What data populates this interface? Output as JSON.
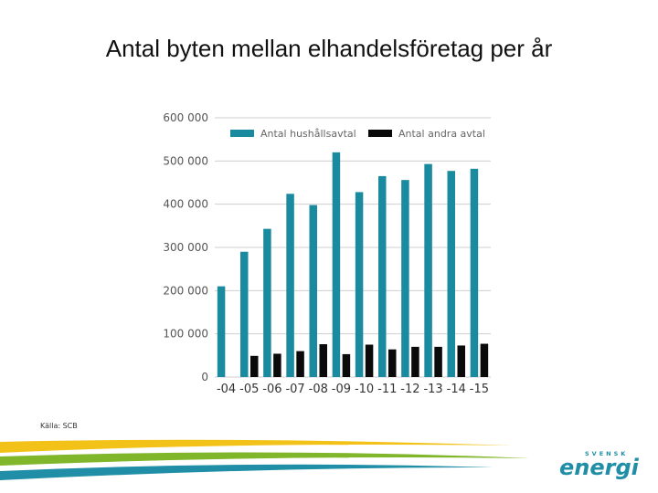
{
  "slide": {
    "title": "Antal byten mellan elhandelsföretag per år",
    "source": "Källa: SCB"
  },
  "brand": {
    "small": "SVENSK",
    "big": "energi"
  },
  "colors": {
    "household": "#1a8a9e",
    "other": "#0a0a0a",
    "grid": "#cfcfcf",
    "swoosh_yellow": "#f2c218",
    "swoosh_green": "#7fb62a",
    "swoosh_teal": "#1f8ea6",
    "logo": "#1f8ea6"
  },
  "chart_data": {
    "type": "bar",
    "categories": [
      "-04",
      "-05",
      "-06",
      "-07",
      "-08",
      "-09",
      "-10",
      "-11",
      "-12",
      "-13",
      "-14",
      "-15"
    ],
    "series": [
      {
        "name": "Antal hushållsavtal",
        "values": [
          210000,
          290000,
          343000,
          424000,
          398000,
          520000,
          428000,
          465000,
          456000,
          493000,
          477000,
          482000
        ]
      },
      {
        "name": "Antal andra avtal",
        "values": [
          null,
          49000,
          54000,
          60000,
          76000,
          53000,
          75000,
          64000,
          70000,
          70000,
          73000,
          77000
        ]
      }
    ],
    "yticks": [
      0,
      100000,
      200000,
      300000,
      400000,
      500000,
      600000
    ],
    "ytick_labels": [
      "0",
      "100 000",
      "200 000",
      "300 000",
      "400 000",
      "500 000",
      "600 000"
    ],
    "ylim": [
      0,
      600000
    ],
    "grid": true,
    "legend_position": "top"
  }
}
